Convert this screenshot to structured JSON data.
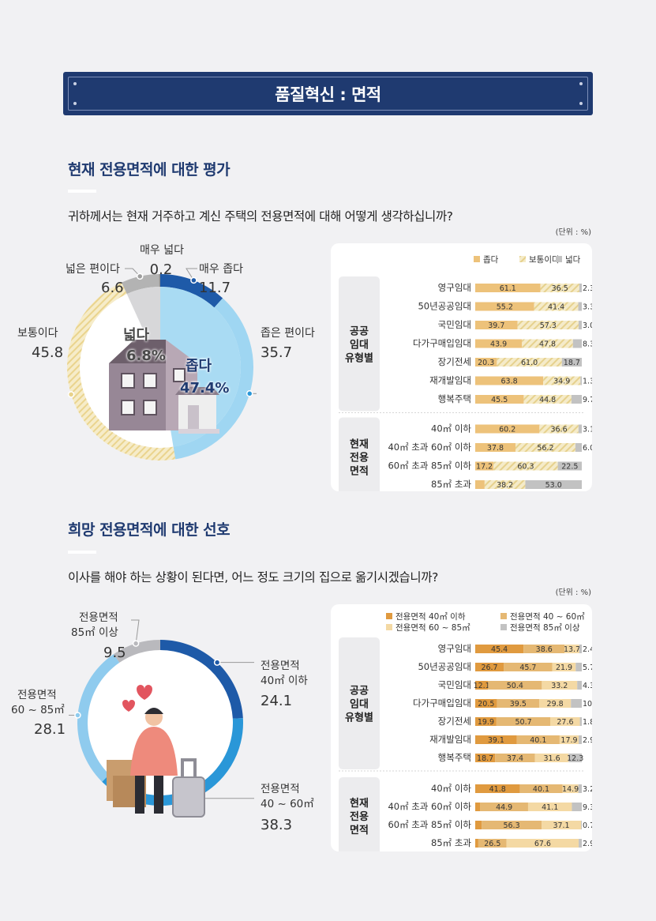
{
  "banner": {
    "title": "품질혁신 : 면적"
  },
  "section1": {
    "title": "현재 전용면적에 대한 평가",
    "question": "귀하께서는 현재 거주하고 계신 주택의 전용면적에 대해 어떻게 생각하십니까?",
    "unit": "(단위 : %)",
    "summary": {
      "wide_label": "넓다",
      "wide_value": "6.8%",
      "narrow_label": "좁다",
      "narrow_value": "47.4%"
    }
  },
  "section2": {
    "title": "희망 전용면적에 대한 선호",
    "question": "이사를 해야 하는 상황이 된다면, 어느 정도 크기의 집으로 옮기시겠습니까?",
    "unit": "(단위 : %)"
  },
  "colors": {
    "navy": "#1f3a70",
    "donut1": [
      "#1e5aa8",
      "#9fd6f2",
      "#f1e3b0",
      "#b3b3b3",
      "#8f8f8f"
    ],
    "donut2": [
      "#1e5aa8",
      "#2a97d8",
      "#8fcbee",
      "#b9b9bd"
    ],
    "bars1": [
      "#edc27a",
      "#f1e3b0",
      "#c2c2c2"
    ],
    "bars2": [
      "#e09a3f",
      "#e5b873",
      "#f4d9a4",
      "#c2c2c2"
    ]
  },
  "chart_data": [
    {
      "type": "pie",
      "categories": [
        "매우 좁다",
        "좁은 편이다",
        "보통이다",
        "넓은 편이다",
        "매우 넓다"
      ],
      "values": [
        11.7,
        35.7,
        45.8,
        6.6,
        0.2
      ],
      "display": [
        "11.7",
        "35.7",
        "45.8",
        "6.6",
        "0.2"
      ]
    },
    {
      "type": "bar",
      "stacked": true,
      "orientation": "horizontal",
      "legend": [
        "좁다",
        "보통이다",
        "넓다"
      ],
      "groups": [
        {
          "label": "공공 임대 유형별",
          "label_lines": [
            "공공",
            "임대",
            "유형별"
          ],
          "rows": [
            {
              "label": "영구임대",
              "values": [
                61.1,
                36.5,
                2.3
              ]
            },
            {
              "label": "50년공공임대",
              "values": [
                55.2,
                41.4,
                3.3
              ]
            },
            {
              "label": "국민임대",
              "values": [
                39.7,
                57.3,
                3.0
              ]
            },
            {
              "label": "다가구매입임대",
              "values": [
                43.9,
                47.8,
                8.3
              ]
            },
            {
              "label": "장기전세",
              "values": [
                20.3,
                61.0,
                18.7
              ]
            },
            {
              "label": "재개발임대",
              "values": [
                63.8,
                34.9,
                1.3
              ]
            },
            {
              "label": "행복주택",
              "values": [
                45.5,
                44.8,
                9.7
              ]
            }
          ]
        },
        {
          "label": "현재 전용 면적",
          "label_lines": [
            "현재",
            "전용",
            "면적"
          ],
          "rows": [
            {
              "label": "40㎡ 이하",
              "values": [
                60.2,
                36.6,
                3.1
              ]
            },
            {
              "label": "40㎡ 초과 60㎡ 이하",
              "values": [
                37.8,
                56.2,
                6.0
              ]
            },
            {
              "label": "60㎡ 초과 85㎡ 이하",
              "values": [
                17.2,
                60.3,
                22.5
              ]
            },
            {
              "label": "85㎡ 초과",
              "values": [
                8.8,
                38.2,
                53.0
              ]
            }
          ]
        }
      ]
    },
    {
      "type": "pie",
      "categories": [
        "전용면적 40㎡ 이하",
        "전용면적 40 ~ 60㎡",
        "전용면적 60 ~ 85㎡",
        "전용면적 85㎡ 이상"
      ],
      "label_lines": [
        [
          "전용면적",
          "40㎡ 이하"
        ],
        [
          "전용면적",
          "40 ~ 60㎡"
        ],
        [
          "전용면적",
          "60 ~ 85㎡"
        ],
        [
          "전용면적",
          "85㎡ 이상"
        ]
      ],
      "values": [
        24.1,
        38.3,
        28.1,
        9.5
      ],
      "display": [
        "24.1",
        "38.3",
        "28.1",
        "9.5"
      ]
    },
    {
      "type": "bar",
      "stacked": true,
      "orientation": "horizontal",
      "legend": [
        "전용면적 40㎡ 이하",
        "전용면적 40 ~ 60㎡",
        "전용면적 60 ~ 85㎡",
        "전용면적 85㎡ 이상"
      ],
      "groups": [
        {
          "label": "공공 임대 유형별",
          "label_lines": [
            "공공",
            "임대",
            "유형별"
          ],
          "rows": [
            {
              "label": "영구임대",
              "values": [
                45.4,
                38.6,
                13.7,
                2.4
              ]
            },
            {
              "label": "50년공공임대",
              "values": [
                26.7,
                45.7,
                21.9,
                5.7
              ]
            },
            {
              "label": "국민임대",
              "values": [
                12.1,
                50.4,
                33.2,
                4.3
              ]
            },
            {
              "label": "다가구매입임대",
              "values": [
                20.5,
                39.5,
                29.8,
                10.2
              ]
            },
            {
              "label": "장기전세",
              "values": [
                19.9,
                50.7,
                27.6,
                1.8
              ]
            },
            {
              "label": "재개발임대",
              "values": [
                39.1,
                40.1,
                17.9,
                2.9
              ]
            },
            {
              "label": "행복주택",
              "values": [
                18.7,
                37.4,
                31.6,
                12.3
              ]
            }
          ]
        },
        {
          "label": "현재 전용 면적",
          "label_lines": [
            "현재",
            "전용",
            "면적"
          ],
          "rows": [
            {
              "label": "40㎡ 이하",
              "values": [
                41.8,
                40.1,
                14.9,
                3.2
              ]
            },
            {
              "label": "40㎡ 초과 60㎡ 이하",
              "values": [
                4.7,
                44.9,
                41.1,
                9.3
              ]
            },
            {
              "label": "60㎡ 초과 85㎡ 이하",
              "values": [
                6.0,
                56.3,
                37.1,
                0.7
              ]
            },
            {
              "label": "85㎡ 초과",
              "values": [
                2.9,
                26.5,
                67.6,
                2.9
              ]
            }
          ]
        }
      ]
    }
  ]
}
